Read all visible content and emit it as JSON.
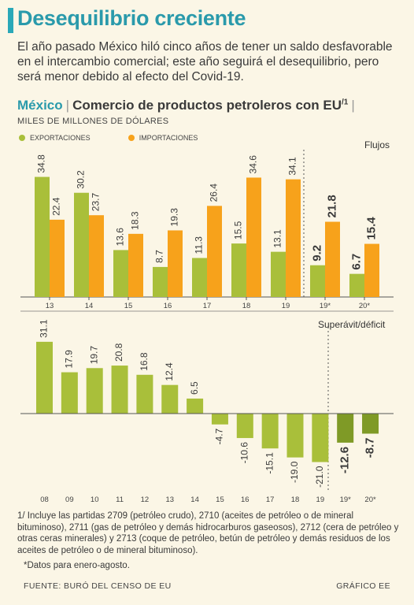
{
  "headline": "Desequilibrio creciente",
  "deck": "El año pasado México hiló cinco años de tener un saldo desfavorable en el intercambio comercial; este año seguirá el desequilibrio, pero será menor debido al efecto del Covid-19.",
  "chart_header": {
    "country": "México",
    "title": "Comercio de productos petroleros con EU",
    "title_sup": "/1",
    "units": "MILES DE MILLONES DE DÓLARES"
  },
  "colors": {
    "exports": "#a9bf3a",
    "exports_projection": "#7f9a26",
    "imports": "#f7a21b",
    "teal": "#2a9aab"
  },
  "chart_data": [
    {
      "type": "bar",
      "panel_label": "Flujos",
      "categories": [
        "13",
        "14",
        "15",
        "16",
        "17",
        "18",
        "19",
        "19*",
        "20*"
      ],
      "series": [
        {
          "name": "EXPORTACIONES",
          "values": [
            34.8,
            30.2,
            13.6,
            8.7,
            11.3,
            15.5,
            13.1,
            9.2,
            6.7
          ]
        },
        {
          "name": "IMPORTACIONES",
          "values": [
            22.4,
            23.7,
            18.3,
            19.3,
            26.4,
            34.6,
            34.1,
            21.8,
            15.4
          ]
        }
      ],
      "value_labels": {
        "exports": [
          "34.8",
          "30.2",
          "13.6",
          "8.7",
          "11.3",
          "15.5",
          "13.1",
          "9.2",
          "6.7"
        ],
        "imports": [
          "22.4",
          "23.7",
          "18.3",
          "19.3",
          "26.4",
          "34.6",
          "34.1",
          "21.8",
          "15.4"
        ]
      },
      "ylim": [
        0,
        40
      ],
      "legend_position": "top-left"
    },
    {
      "type": "bar",
      "panel_label": "Superávit/déficit",
      "categories": [
        "08",
        "09",
        "10",
        "11",
        "12",
        "13",
        "14",
        "15",
        "16",
        "17",
        "18",
        "19",
        "19*",
        "20*"
      ],
      "values": [
        31.1,
        17.9,
        19.7,
        20.8,
        16.8,
        12.4,
        6.5,
        -4.7,
        -10.6,
        -15.1,
        -19.0,
        -21.0,
        -12.6,
        -8.7
      ],
      "value_labels": [
        "31.1",
        "17.9",
        "19.7",
        "20.8",
        "16.8",
        "12.4",
        "6.5",
        "-4.7",
        "-10.6",
        "-15.1",
        "-19.0",
        "-21.0",
        "-12.6",
        "-8.7"
      ],
      "ylim": [
        -25,
        35
      ]
    }
  ],
  "footnote": "1/ Incluye las partidas 2709 (petróleo crudo), 2710 (aceites de petróleo o de mineral bituminoso), 2711 (gas de petróleo y demás hidrocarburos gaseosos), 2712 (cera de petróleo y otras ceras minerales) y 2713 (coque de petróleo, betún de petróleo y demás residuos de los aceites de petróleo o de mineral bituminoso).",
  "asterisk_note": "*Datos para enero-agosto.",
  "source": "FUENTE: BURÓ DEL CENSO DE EU",
  "credit": "GRÁFICO EE"
}
